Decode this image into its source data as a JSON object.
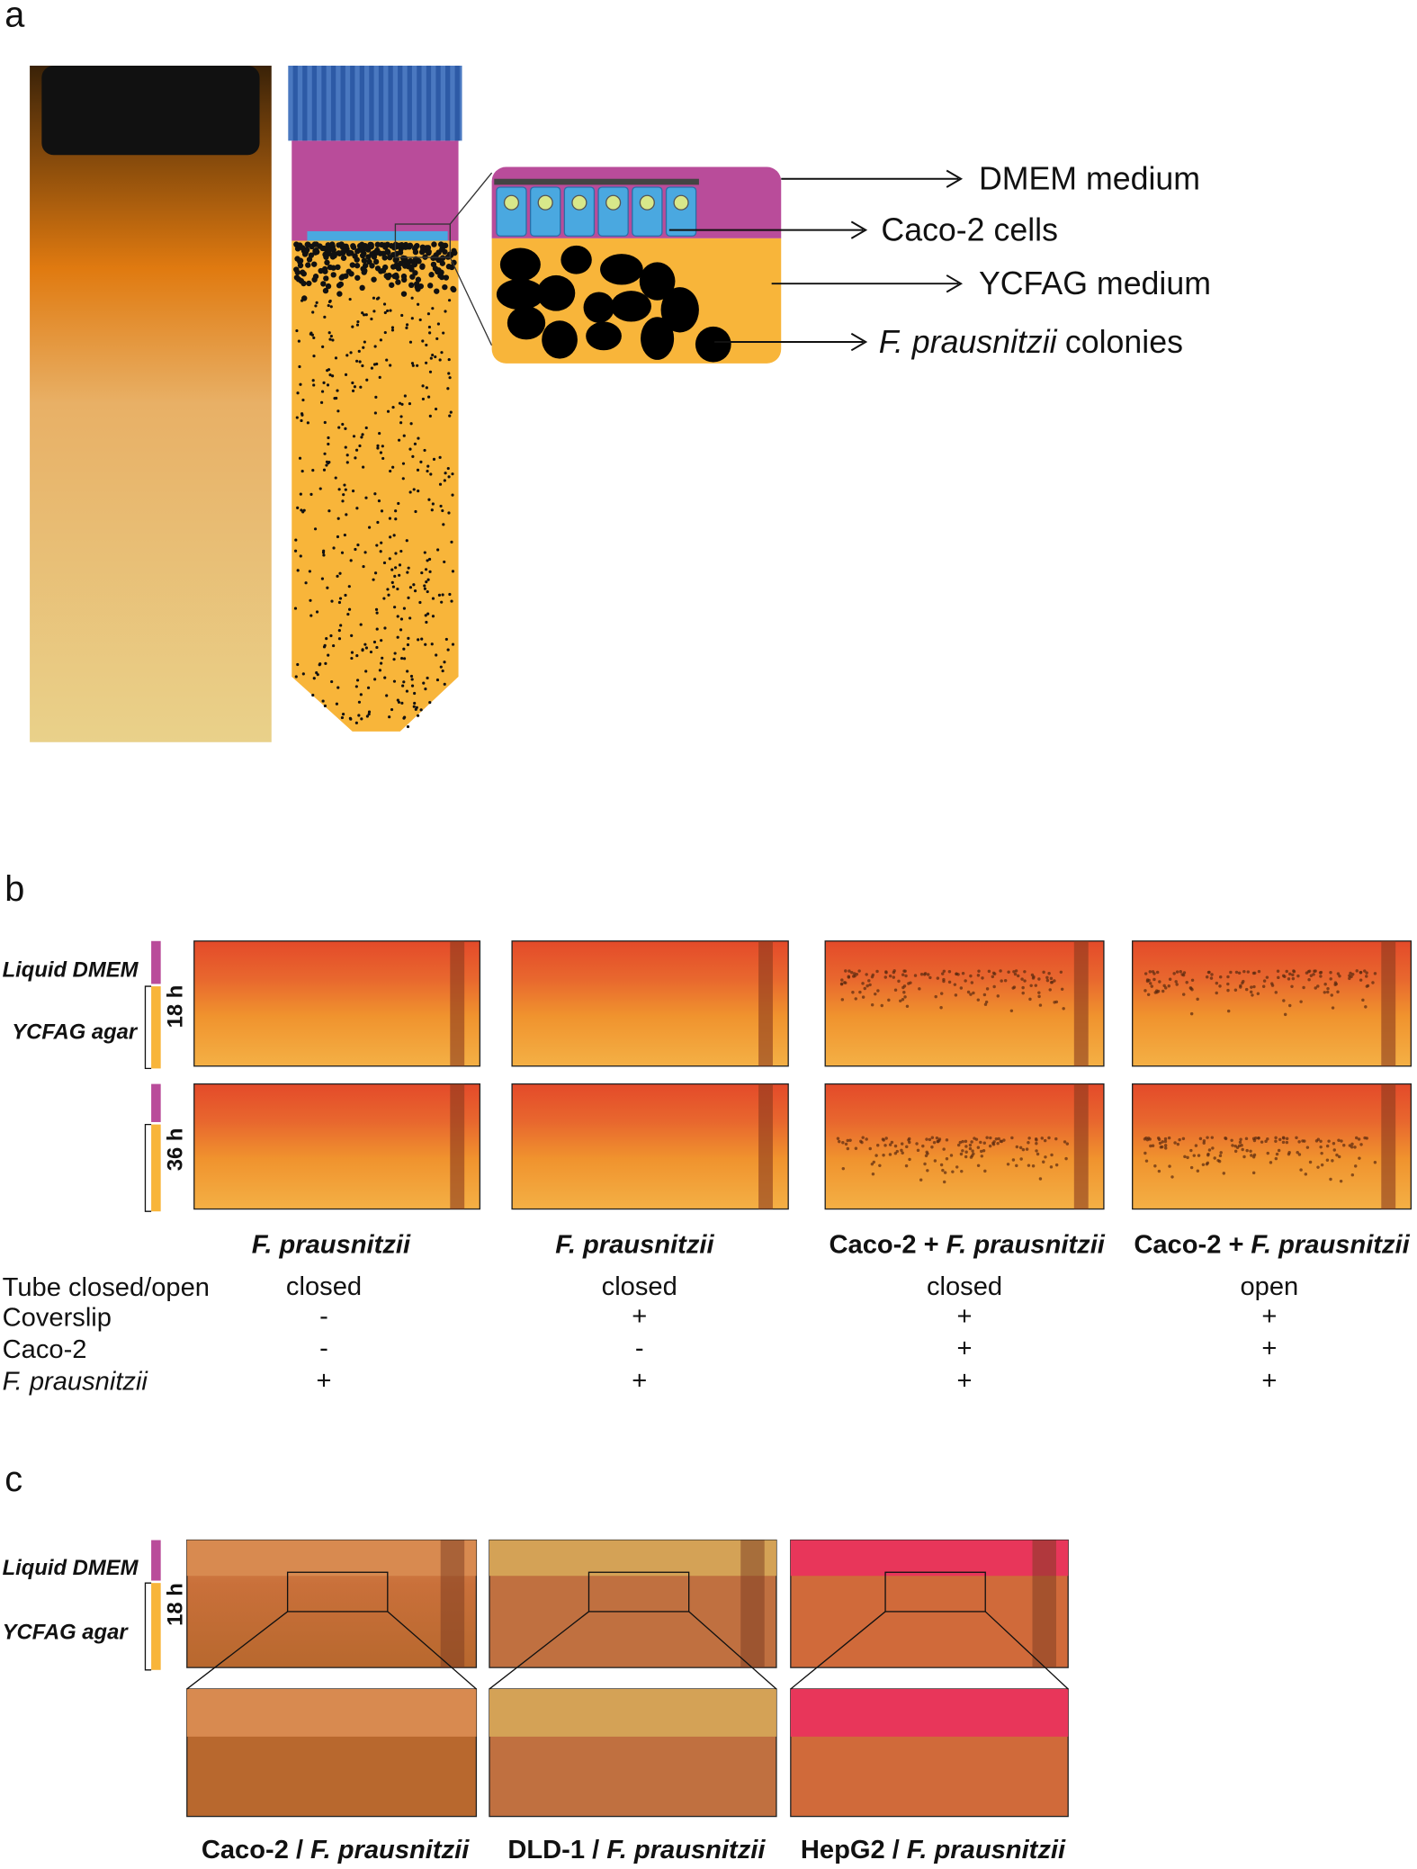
{
  "panel_a": {
    "label": "a",
    "callouts": [
      {
        "text": "DMEM medium"
      },
      {
        "text": "Caco-2 cells"
      },
      {
        "text": "YCFAG medium"
      },
      {
        "species": "F. prausnitzii",
        "text": "colonies"
      }
    ]
  },
  "panel_b": {
    "label": "b",
    "layers": [
      "Liquid DMEM",
      "YCFAG agar"
    ],
    "times": [
      "18 h",
      "36 h"
    ],
    "columns": [
      {
        "species": "F. prausnitzii"
      },
      {
        "species": "F. prausnitzii"
      },
      {
        "prefix": "Caco-2 +",
        "species": "F. prausnitzii"
      },
      {
        "prefix": "Caco-2 +",
        "species": "F. prausnitzii"
      }
    ],
    "rows": [
      {
        "label": "Tube closed/open",
        "cells": [
          "closed",
          "closed",
          "closed",
          "open"
        ]
      },
      {
        "label": "Coverslip",
        "cells": [
          "-",
          "+",
          "+",
          "+"
        ]
      },
      {
        "label": "Caco-2",
        "cells": [
          "-",
          "-",
          "+",
          "+"
        ]
      },
      {
        "label": "F. prausnitzii",
        "cells": [
          "+",
          "+",
          "+",
          "+"
        ]
      }
    ]
  },
  "panel_c": {
    "label": "c",
    "layers": [
      "Liquid DMEM",
      "YCFAG agar"
    ],
    "time": "18 h",
    "captions": [
      {
        "prefix": "Caco-2 /",
        "species": "F. prausnitzii"
      },
      {
        "prefix": "DLD-1 /",
        "species": "F. prausnitzii"
      },
      {
        "prefix": "HepG2 /",
        "species": "F. prausnitzii"
      }
    ]
  }
}
